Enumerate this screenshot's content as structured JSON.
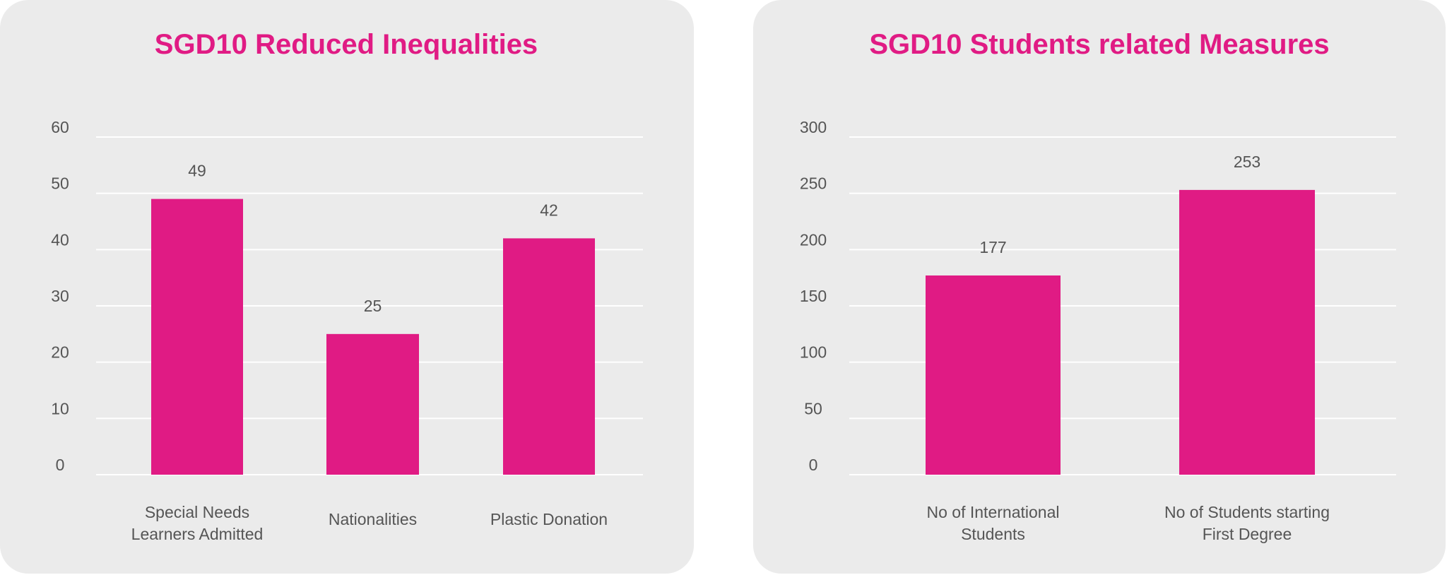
{
  "chart_data": [
    {
      "type": "bar",
      "title": "SGD10 Reduced Inequalities",
      "categories": [
        [
          "Special Needs",
          "Learners Admitted"
        ],
        [
          "Nationalities"
        ],
        [
          "Plastic Donation"
        ]
      ],
      "values": [
        49,
        25,
        42
      ],
      "value_labels": [
        "49",
        "25",
        "42"
      ],
      "yticks": [
        "0",
        "10",
        "20",
        "30",
        "40",
        "50",
        "60"
      ],
      "ylim": [
        0,
        60
      ],
      "xlabel": "",
      "ylabel": "",
      "grid": true,
      "color": "#e01b84"
    },
    {
      "type": "bar",
      "title": "SGD10 Students related Measures",
      "categories": [
        [
          "No of International",
          "Students"
        ],
        [
          "No of Students starting",
          "First Degree"
        ]
      ],
      "values": [
        177,
        253
      ],
      "value_labels": [
        "177",
        "253"
      ],
      "yticks": [
        "0",
        "50",
        "100",
        "150",
        "200",
        "250",
        "300"
      ],
      "ylim": [
        0,
        300
      ],
      "xlabel": "",
      "ylabel": "",
      "grid": true,
      "color": "#e01b84"
    }
  ]
}
